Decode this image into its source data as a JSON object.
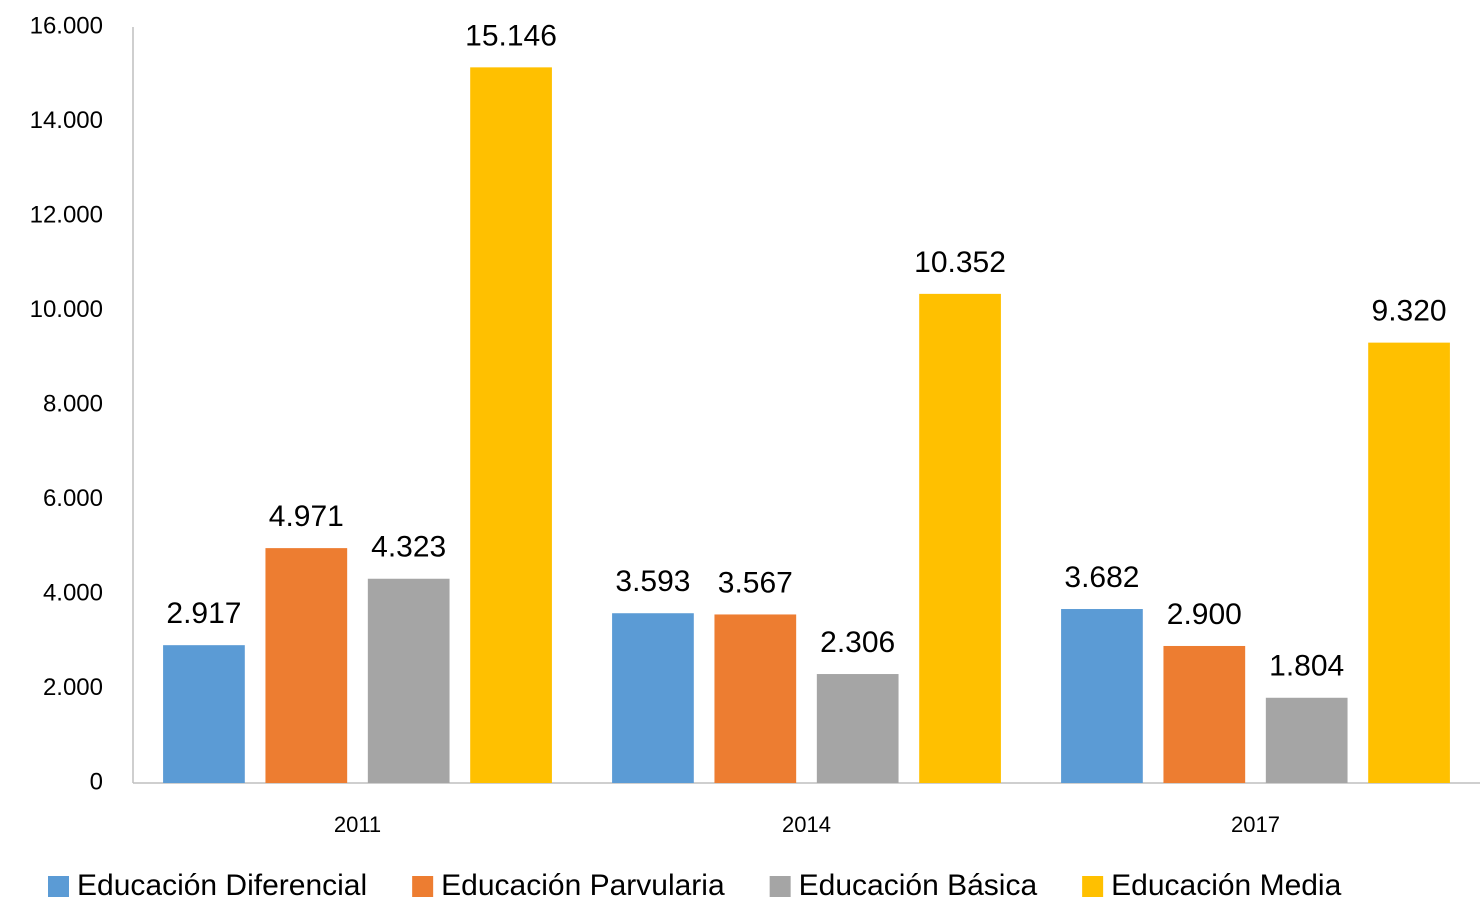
{
  "chart_data": {
    "type": "bar",
    "categories": [
      "2011",
      "2014",
      "2017"
    ],
    "series": [
      {
        "name": "Educación Diferencial",
        "color": "#5b9bd5",
        "values": [
          2917,
          3593,
          3682
        ],
        "value_labels": [
          "2.917",
          "3.593",
          "3.682"
        ]
      },
      {
        "name": "Educación Parvularia",
        "color": "#ed7d31",
        "values": [
          4971,
          3567,
          2900
        ],
        "value_labels": [
          "4.971",
          "3.567",
          "2.900"
        ]
      },
      {
        "name": "Educación Básica",
        "color": "#a5a5a5",
        "values": [
          4323,
          2306,
          1804
        ],
        "value_labels": [
          "4.323",
          "2.306",
          "1.804"
        ]
      },
      {
        "name": "Educación Media",
        "color": "#ffc000",
        "values": [
          15146,
          10352,
          9320
        ],
        "value_labels": [
          "15.146",
          "10.352",
          "9.320"
        ]
      }
    ],
    "ylim": [
      0,
      16000
    ],
    "yticks": [
      0,
      {
        "value": 2000,
        "label": "2.000"
      },
      {
        "value": 4000,
        "label": "4.000"
      },
      {
        "value": 6000,
        "label": "6.000"
      },
      {
        "value": 8000,
        "label": "8.000"
      },
      {
        "value": 10000,
        "label": "10.000"
      },
      {
        "value": 12000,
        "label": "12.000"
      },
      {
        "value": 14000,
        "label": "14.000"
      },
      {
        "value": 16000,
        "label": "16.000"
      }
    ],
    "grid": false,
    "legend": "bottom"
  }
}
